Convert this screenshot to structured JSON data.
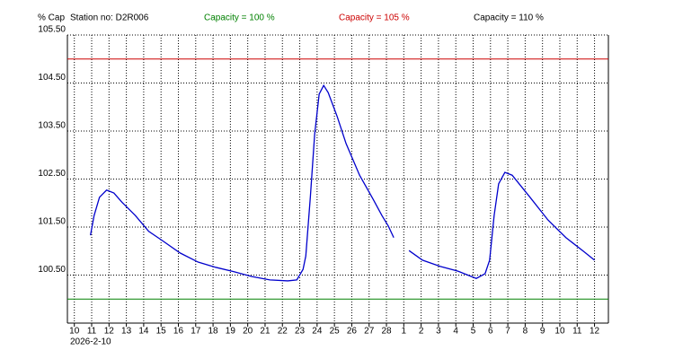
{
  "chart_data": {
    "type": "line",
    "ylabel": "% Cap",
    "title": "Station no: D2R006",
    "date_label": "2026-2-10",
    "reference_lines": [
      {
        "label": "Capacity = 100 %",
        "value": 100,
        "color": "#008000"
      },
      {
        "label": "Capacity = 105 %",
        "value": 105,
        "color": "#cc0000"
      },
      {
        "label": "Capacity = 110 %",
        "value": 110,
        "color": "#000000"
      }
    ],
    "ylim": [
      99.5,
      105.5
    ],
    "yticks": [
      {
        "value": 100.5,
        "label": "100.50"
      },
      {
        "value": 101.5,
        "label": "101.50"
      },
      {
        "value": 102.5,
        "label": "102.50"
      },
      {
        "value": 103.5,
        "label": "103.50"
      },
      {
        "value": 104.5,
        "label": "104.50"
      },
      {
        "value": 105.5,
        "label": "105.50"
      }
    ],
    "xlim": [
      -0.4,
      30.8
    ],
    "xticks": [
      {
        "value": 0,
        "label": "10"
      },
      {
        "value": 1,
        "label": "11"
      },
      {
        "value": 2,
        "label": "12"
      },
      {
        "value": 3,
        "label": "13"
      },
      {
        "value": 4,
        "label": "14"
      },
      {
        "value": 5,
        "label": "15"
      },
      {
        "value": 6,
        "label": "16"
      },
      {
        "value": 7,
        "label": "17"
      },
      {
        "value": 8,
        "label": "18"
      },
      {
        "value": 9,
        "label": "19"
      },
      {
        "value": 10,
        "label": "20"
      },
      {
        "value": 11,
        "label": "21"
      },
      {
        "value": 12,
        "label": "22"
      },
      {
        "value": 13,
        "label": "23"
      },
      {
        "value": 14,
        "label": "24"
      },
      {
        "value": 15,
        "label": "25"
      },
      {
        "value": 16,
        "label": "26"
      },
      {
        "value": 17,
        "label": "27"
      },
      {
        "value": 18,
        "label": "28"
      },
      {
        "value": 19,
        "label": "1"
      },
      {
        "value": 20,
        "label": "2"
      },
      {
        "value": 21,
        "label": "3"
      },
      {
        "value": 22,
        "label": "4"
      },
      {
        "value": 23,
        "label": "5"
      },
      {
        "value": 24,
        "label": "6"
      },
      {
        "value": 25,
        "label": "7"
      },
      {
        "value": 26,
        "label": "8"
      },
      {
        "value": 27,
        "label": "9"
      },
      {
        "value": 28,
        "label": "10"
      },
      {
        "value": 29,
        "label": "11"
      },
      {
        "value": 30,
        "label": "12"
      }
    ],
    "grid": true,
    "series": [
      {
        "color": "#0000cc",
        "x": [
          0.93,
          1.14,
          1.45,
          1.86,
          2.28,
          2.74,
          3.52,
          4.29,
          5.07,
          6.1,
          7.14,
          8.17,
          9.21,
          10.24,
          11.28,
          12.31,
          12.83,
          13.19,
          13.35,
          13.61,
          13.86,
          14.12,
          14.38,
          14.64,
          15.16,
          15.67,
          16.45,
          17.23,
          17.74,
          18.11,
          18.42,
          18.9,
          19.3,
          20.08,
          21.11,
          22.14,
          23.18,
          23.69,
          23.95,
          24.21,
          24.47,
          24.83,
          25.25,
          26.28,
          27.31,
          28.35,
          29.38,
          30.0
        ],
        "values": [
          101.33,
          101.74,
          102.12,
          102.27,
          102.21,
          102.02,
          101.74,
          101.41,
          101.22,
          100.96,
          100.77,
          100.66,
          100.57,
          100.47,
          100.4,
          100.38,
          100.4,
          100.62,
          100.9,
          102.12,
          103.43,
          104.27,
          104.45,
          104.3,
          103.8,
          103.24,
          102.58,
          102.08,
          101.74,
          101.52,
          101.28,
          null,
          101.01,
          100.81,
          100.68,
          100.58,
          100.43,
          100.53,
          100.81,
          101.74,
          102.4,
          102.64,
          102.58,
          102.12,
          101.65,
          101.28,
          100.99,
          100.81
        ]
      }
    ]
  }
}
